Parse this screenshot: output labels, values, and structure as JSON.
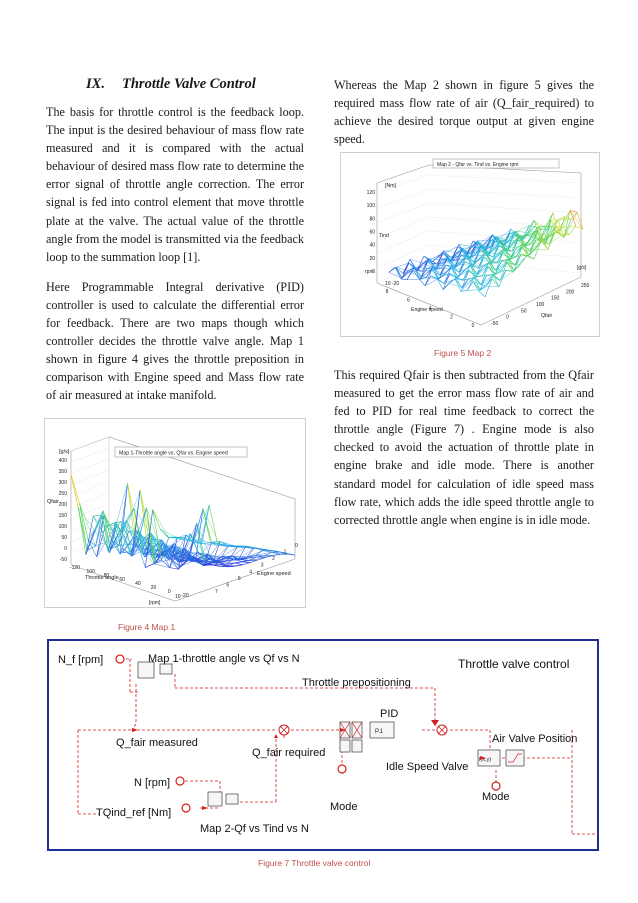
{
  "section": {
    "number": "IX.",
    "title": "Throttle Valve Control"
  },
  "left_paragraphs": [
    "The basis for throttle control is the feedback loop. The input is the desired behaviour of mass flow rate measured and it is compared with the actual behaviour of desired mass flow rate to determine the error signal of throttle angle correction. The error signal is fed into control element that move throttle plate at the valve. The actual value of the throttle angle from the model is transmitted via the feedback loop to the summation loop [1].",
    "Here Programmable Integral derivative (PID) controller is used to calculate the differential error for feedback. There are two maps though which controller decides the throttle valve angle. Map 1 shown in figure 4 gives the throttle preposition in comparison with Engine speed and Mass flow rate of air measured at intake manifold."
  ],
  "right_paragraphs": [
    "Whereas the Map 2 shown in figure 5 gives the required mass flow rate of air (Q_fair_required) to achieve the desired torque output at given engine speed.",
    "This required Qfair is then subtracted from the Qfair measured to get the error mass flow rate of air and fed to PID for real time feedback to correct the throttle angle (Figure 7) . Engine mode is also checked to avoid the actuation of throttle plate in engine brake and idle mode. There is another standard model for calculation of idle speed mass flow rate, which adds the idle speed throttle angle to corrected throttle angle when engine is in idle mode."
  ],
  "fig4": {
    "caption": "Figure 4 Map 1",
    "title": "Map 1-Throttle angle vs. Qfar vs. Engine speed",
    "z_unit": "[g/s]",
    "z_label": "Qfair",
    "z_ticks": [
      "400",
      "350",
      "300",
      "250",
      "200",
      "150",
      "100",
      "50",
      "0",
      "-50"
    ],
    "x_label": "Throttle angle",
    "x_ticks": [
      "-120",
      "100",
      "80",
      "60",
      "40",
      "20",
      "0",
      "-20"
    ],
    "y_label": "Engine speed",
    "y_ticks": [
      "0",
      "1",
      "2",
      "3",
      "4",
      "5",
      "6",
      "7"
    ],
    "y_unit": "[rpm]",
    "y_end": "10"
  },
  "fig5": {
    "caption": "Figure 5 Map 2",
    "title": "Map 2 - Qfar vs. Tind vs. Engine rpm",
    "z_unit": "[Nm]",
    "z_label": "Tind",
    "z_ticks": [
      "120",
      "100",
      "80",
      "60",
      "40",
      "20",
      "0"
    ],
    "z_bottom": "10 -20",
    "left_unit": "rpm",
    "x_label": "Engine speed",
    "x_ticks": [
      "8",
      "6",
      "4",
      "2",
      "0"
    ],
    "y_label": "Qfair",
    "y_ticks": [
      "-50",
      "0",
      "50",
      "100",
      "150",
      "200",
      "250"
    ],
    "y_unit": "[g/s]"
  },
  "fig7": {
    "caption": "Figure 7 Throttle valve control",
    "title": "Throttle valve control",
    "labels": {
      "nf": "N_f [rpm]",
      "map1": "Map 1-throttle angle vs Qf vs N",
      "prepos": "Throttle prepositioning",
      "pid": "PID",
      "pid_block": "P.1",
      "qmeas": "Q_fair measured",
      "qreq": "Q_fair required",
      "idle": "Idle Speed Valve",
      "airvalve": "Air Valve Position",
      "n": "N [rpm]",
      "tq": "TQind_ref [Nm]",
      "map2": "Map 2-Qf vs Tind vs N",
      "mode1": "Mode",
      "mode2": "Mode",
      "fxy": "f(x,y)"
    }
  },
  "colors": {
    "caption": "#c0504d",
    "diagram_frame": "#1f2f8f",
    "signal": "#d11f1f"
  }
}
